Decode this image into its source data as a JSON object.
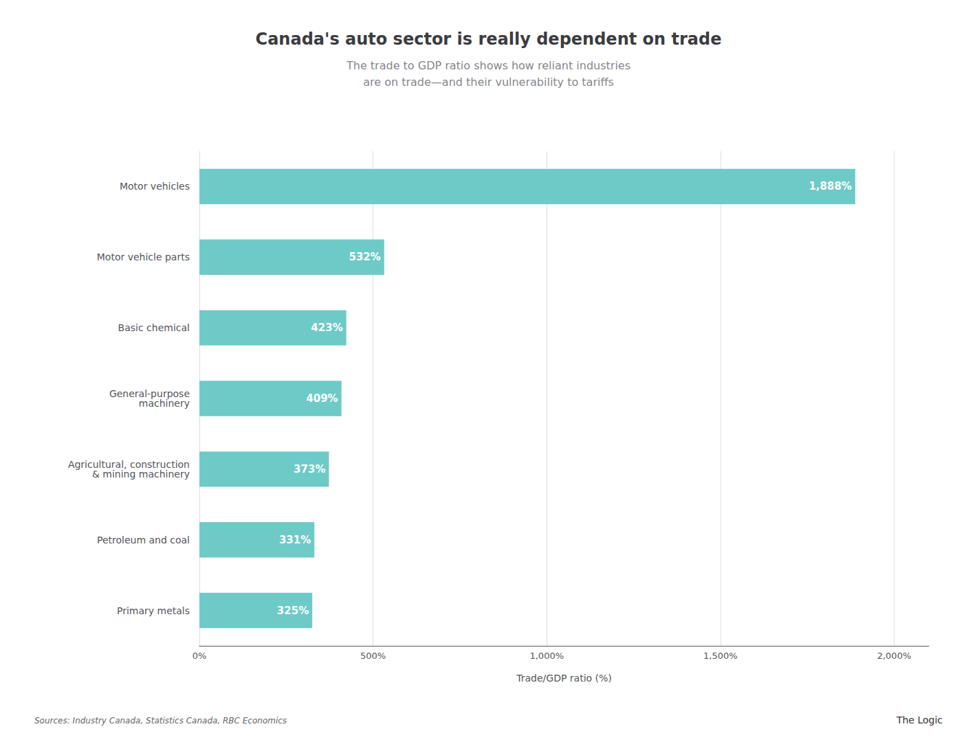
{
  "chart_data": {
    "type": "bar",
    "orientation": "horizontal",
    "title": "Canada's auto sector is really dependent on trade",
    "subtitle": "The trade to GDP ratio shows how reliant industries\nare on trade—and their vulnerability to tariffs",
    "categories": [
      "Primary metals",
      "Petroleum and coal",
      "Agricultural, construction\n& mining machinery",
      "General-purpose\nmachinery",
      "Basic chemical",
      "Motor vehicle parts",
      "Motor vehicles"
    ],
    "values": [
      325,
      331,
      373,
      409,
      423,
      532,
      1888
    ],
    "value_labels": [
      "325%",
      "331%",
      "373%",
      "409%",
      "423%",
      "532%",
      "1,888%"
    ],
    "data_labels": true,
    "color": "#6ECAC7",
    "xlabel": "Trade/GDP ratio (%)",
    "xlim": [
      0,
      2100
    ],
    "xticks": [
      {
        "value": 0,
        "label": "0%"
      },
      {
        "value": 500,
        "label": "500%"
      },
      {
        "value": 1000,
        "label": "1,000%"
      },
      {
        "value": 1500,
        "label": "1,500%"
      },
      {
        "value": 2000,
        "label": "2,000%"
      }
    ],
    "grid": true,
    "annotations": [
      "Sources: Industry Canada, Statistics Canada, RBC Economics",
      "The Logic"
    ]
  }
}
